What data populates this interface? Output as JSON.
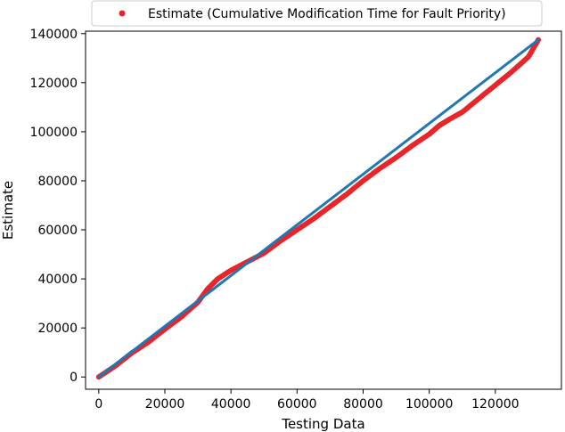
{
  "chart_data": {
    "type": "scatter",
    "title": "",
    "xlabel": "Testing Data",
    "ylabel": "Estimate",
    "xlim": [
      -4000,
      140000
    ],
    "ylim": [
      -5000,
      141000
    ],
    "xticks": [
      0,
      20000,
      40000,
      60000,
      80000,
      100000,
      120000
    ],
    "xtick_labels": [
      "0",
      "20000",
      "40000",
      "60000",
      "80000",
      "100000",
      "120000"
    ],
    "yticks": [
      0,
      20000,
      40000,
      60000,
      80000,
      100000,
      120000,
      140000
    ],
    "ytick_labels": [
      "0",
      "20000",
      "40000",
      "60000",
      "80000",
      "100000",
      "120000",
      "140000"
    ],
    "grid": false,
    "legend": {
      "position": "top-center",
      "entries": [
        {
          "label": "Estimate (Cumulative Modification Time for Fault Priority)",
          "color": "#e8252a",
          "marker": "circle"
        }
      ]
    },
    "series": [
      {
        "name": "Estimate (Cumulative Modification Time for Fault Priority)",
        "kind": "scatter",
        "color": "#e8252a",
        "x": [
          0,
          5000,
          10000,
          15000,
          20000,
          25000,
          30000,
          33000,
          36000,
          40000,
          45000,
          50000,
          55000,
          60000,
          65000,
          70000,
          75000,
          80000,
          85000,
          90000,
          95000,
          100000,
          103000,
          106000,
          110000,
          115000,
          120000,
          125000,
          130000,
          133000
        ],
        "y": [
          0,
          4500,
          9800,
          14200,
          19500,
          24500,
          30500,
          36000,
          40000,
          43500,
          47000,
          50500,
          55500,
          60000,
          64500,
          69500,
          74500,
          80000,
          85000,
          89500,
          94500,
          99000,
          102500,
          105000,
          108000,
          113500,
          119000,
          124500,
          130500,
          137500
        ]
      },
      {
        "name": "",
        "kind": "line",
        "color": "#1f77b4",
        "x": [
          0,
          133000
        ],
        "y": [
          0,
          137500
        ]
      }
    ]
  }
}
